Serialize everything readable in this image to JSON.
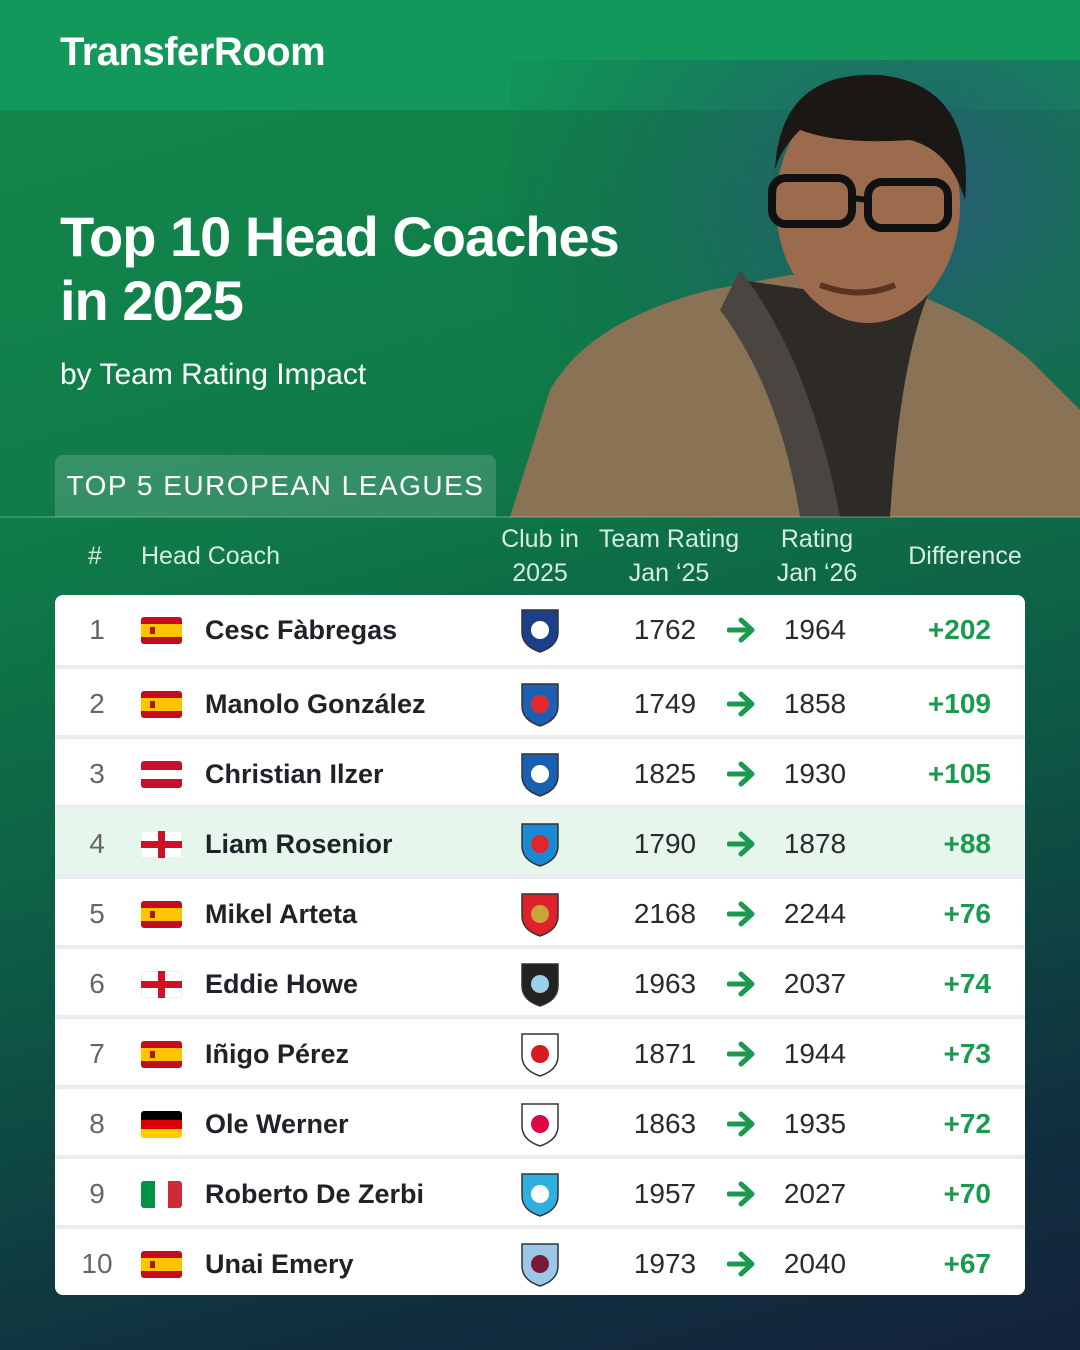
{
  "header": {
    "brand": "TransferRoom",
    "title": "Top 10 Head Coaches in 2025",
    "subtitle": "by Team Rating Impact",
    "tag": "TOP 5 EUROPEAN LEAGUES"
  },
  "table": {
    "headers": [
      "#",
      "Head Coach",
      "Club in 2025",
      "Team Rating Jan ‘25",
      "Rating Jan ‘26",
      "Difference"
    ],
    "rows": [
      {
        "rank": 1,
        "coach": "Cesc Fàbregas",
        "rating_jan25": 1762,
        "rating_jan26": 1964,
        "difference": "+202"
      },
      {
        "rank": 2,
        "coach": "Manolo González",
        "rating_jan25": 1749,
        "rating_jan26": 1858,
        "difference": "+109"
      },
      {
        "rank": 3,
        "coach": "Christian Ilzer",
        "rating_jan25": 1825,
        "rating_jan26": 1930,
        "difference": "+105"
      },
      {
        "rank": 4,
        "coach": "Liam Rosenior",
        "rating_jan25": 1790,
        "rating_jan26": 1878,
        "difference": "+88"
      },
      {
        "rank": 5,
        "coach": "Mikel Arteta",
        "rating_jan25": 2168,
        "rating_jan26": 2244,
        "difference": "+76"
      },
      {
        "rank": 6,
        "coach": "Eddie Howe",
        "rating_jan25": 1963,
        "rating_jan26": 2037,
        "difference": "+74"
      },
      {
        "rank": 7,
        "coach": "Iñigo Pérez",
        "rating_jan25": 1871,
        "rating_jan26": 1944,
        "difference": "+73"
      },
      {
        "rank": 8,
        "coach": "Ole Werner",
        "rating_jan25": 1863,
        "rating_jan26": 1935,
        "difference": "+72"
      },
      {
        "rank": 9,
        "coach": "Roberto De Zerbi",
        "rating_jan25": 1957,
        "rating_jan26": 2027,
        "difference": "+70"
      },
      {
        "rank": 10,
        "coach": "Unai Emery",
        "rating_jan25": 1973,
        "rating_jan26": 2040,
        "difference": "+67"
      }
    ]
  }
}
